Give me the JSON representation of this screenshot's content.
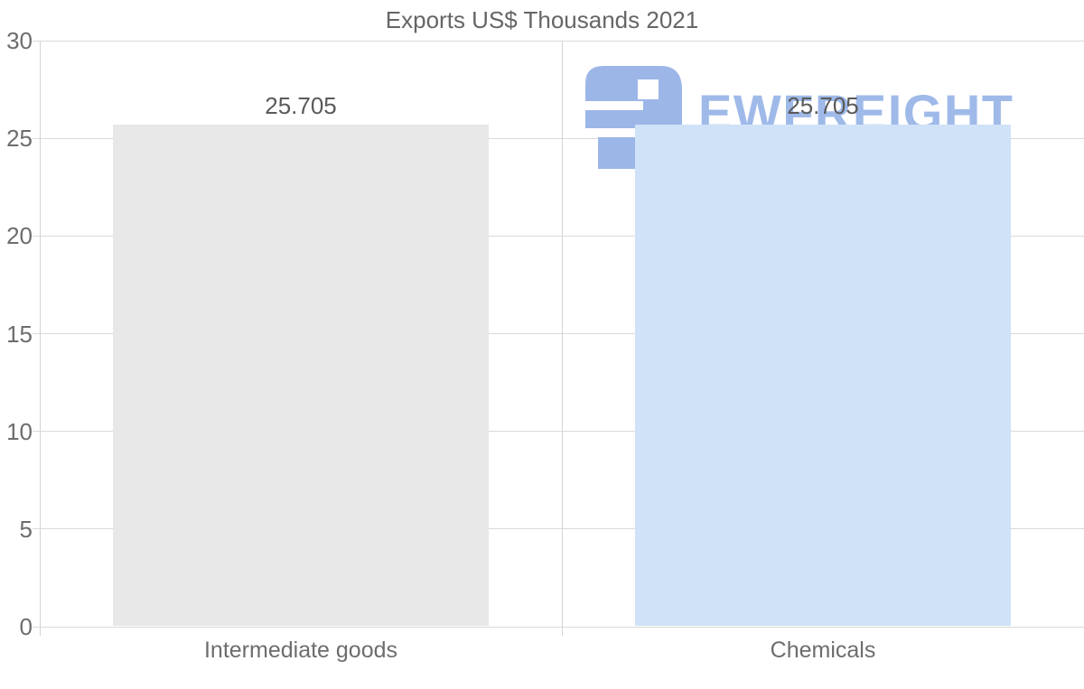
{
  "watermark": {
    "text": "EWFREIGHT",
    "text_color": "#9fbae9",
    "icon_color": "#9cb6e8"
  },
  "chart_data": {
    "type": "bar",
    "title": "Exports US$ Thousands 2021",
    "categories": [
      "Intermediate goods",
      "Chemicals"
    ],
    "values": [
      25.705,
      25.705
    ],
    "value_labels": [
      "25.705",
      "25.705"
    ],
    "bar_colors": [
      "#e8e8e8",
      "#d0e2f7"
    ],
    "ylim": [
      0,
      30
    ],
    "yticks": [
      0,
      5,
      10,
      15,
      20,
      25,
      30
    ],
    "ytick_labels": [
      "0",
      "5",
      "10",
      "15",
      "20",
      "25",
      "30"
    ],
    "xlabel": "",
    "ylabel": "",
    "grid": true,
    "legend": false,
    "bar_width_ratio": 0.72
  }
}
